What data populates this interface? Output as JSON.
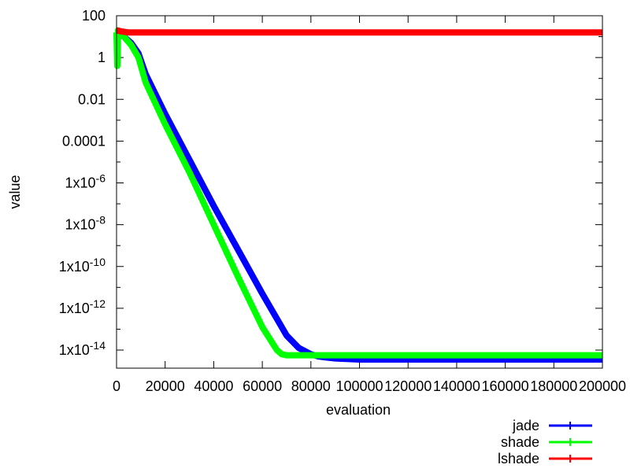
{
  "chart_data": {
    "type": "line",
    "xlabel": "evaluation",
    "ylabel": "value",
    "xlim": [
      0,
      200000
    ],
    "ylim_log10": [
      -15,
      2
    ],
    "y_scale": "log",
    "x_ticks": [
      {
        "value": 0,
        "label": "0"
      },
      {
        "value": 20000,
        "label": "20000"
      },
      {
        "value": 40000,
        "label": "40000"
      },
      {
        "value": 60000,
        "label": "60000"
      },
      {
        "value": 80000,
        "label": "80000"
      },
      {
        "value": 100000,
        "label": "100000"
      },
      {
        "value": 120000,
        "label": "120000"
      },
      {
        "value": 140000,
        "label": "140000"
      },
      {
        "value": 160000,
        "label": "160000"
      },
      {
        "value": 180000,
        "label": "180000"
      },
      {
        "value": 200000,
        "label": "200000"
      }
    ],
    "y_ticks": [
      {
        "log10": 2,
        "base": "100",
        "exp": ""
      },
      {
        "log10": 0,
        "base": "1",
        "exp": ""
      },
      {
        "log10": -2,
        "base": "0.01",
        "exp": ""
      },
      {
        "log10": -4,
        "base": "0.0001",
        "exp": ""
      },
      {
        "log10": -6,
        "base": "1x10",
        "exp": "-6"
      },
      {
        "log10": -8,
        "base": "1x10",
        "exp": "-8"
      },
      {
        "log10": -10,
        "base": "1x10",
        "exp": "-10"
      },
      {
        "log10": -12,
        "base": "1x10",
        "exp": "-12"
      },
      {
        "log10": -14,
        "base": "1x10",
        "exp": "-14"
      }
    ],
    "legend_position": "bottom-right",
    "series": [
      {
        "name": "jade",
        "color": "#0000ff",
        "x": [
          0,
          3000,
          6000,
          9000,
          12000,
          20000,
          30000,
          40000,
          50000,
          60000,
          70000,
          75000,
          80000,
          83000,
          86000,
          90000,
          100000,
          200000
        ],
        "y_log10": [
          1.2,
          1.0,
          0.7,
          0.2,
          -0.8,
          -2.7,
          -4.9,
          -7.1,
          -9.2,
          -11.3,
          -13.3,
          -13.9,
          -14.2,
          -14.3,
          -14.35,
          -14.4,
          -14.45,
          -14.45
        ]
      },
      {
        "name": "shade",
        "color": "#00ff00",
        "x": [
          0,
          300,
          600,
          1000,
          3000,
          6000,
          9000,
          12000,
          20000,
          30000,
          40000,
          50000,
          60000,
          66000,
          68000,
          70000,
          100000,
          200000
        ],
        "y_log10": [
          1.2,
          -0.4,
          1.3,
          1.2,
          1.0,
          0.6,
          0.0,
          -1.2,
          -3.2,
          -5.5,
          -8.0,
          -10.5,
          -12.9,
          -14.0,
          -14.2,
          -14.25,
          -14.25,
          -14.25
        ]
      },
      {
        "name": "lshade",
        "color": "#ff0000",
        "x": [
          0,
          2000,
          5000,
          200000
        ],
        "y_log10": [
          1.3,
          1.25,
          1.2,
          1.2
        ]
      }
    ]
  }
}
